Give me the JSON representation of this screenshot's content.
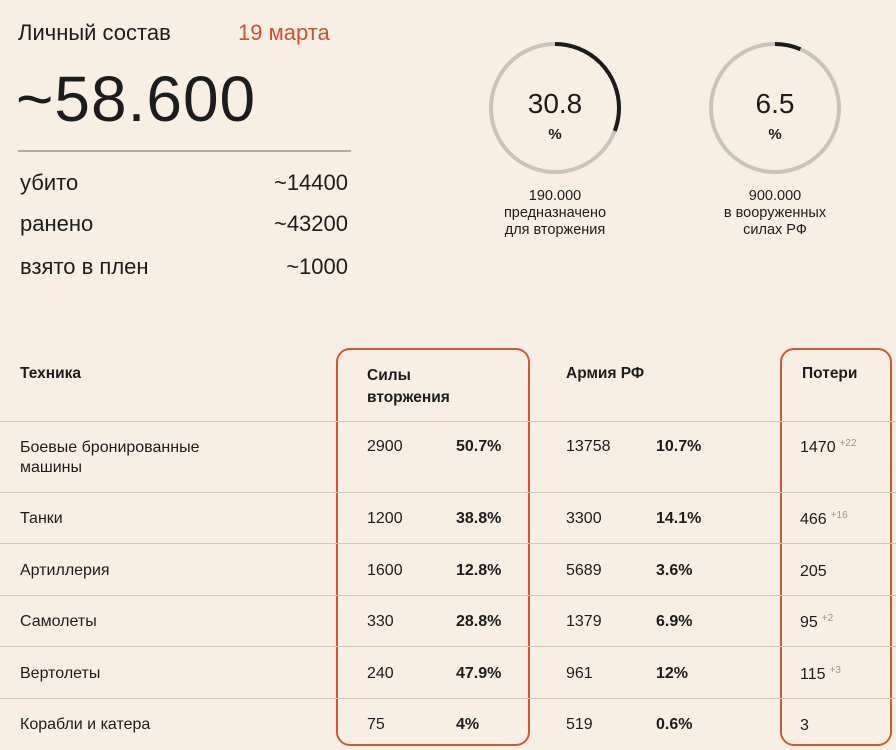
{
  "header": {
    "title": "Личный состав",
    "date": "19 марта",
    "total": "~58.600"
  },
  "casualties": [
    {
      "label": "убито",
      "value": "~14400"
    },
    {
      "label": "ранено",
      "value": "~43200"
    },
    {
      "label": "взято в плен",
      "value": "~1000"
    }
  ],
  "rings": [
    {
      "value": "30.8",
      "unit": "%",
      "fraction": 0.308,
      "caption": [
        "190.000",
        "предназначено",
        "для вторжения"
      ]
    },
    {
      "value": "6.5",
      "unit": "%",
      "fraction": 0.065,
      "caption": [
        "900.000",
        "в вооруженных",
        "силах РФ"
      ]
    }
  ],
  "colors": {
    "accent": "#c8542a",
    "highlight_border": "#cd5a32",
    "ring_track": "#c9c3b9",
    "ring_fill": "#1c1c1c",
    "background": "#f8efe4"
  },
  "table": {
    "headers": {
      "technique": "Техника",
      "invasion": [
        "Силы",
        "вторжения"
      ],
      "army": "Армия РФ",
      "losses": "Потери"
    },
    "rows": [
      {
        "name": [
          "Боевые бронированные",
          "машины"
        ],
        "inv": "2900",
        "inv_pct": "50.7%",
        "army": "13758",
        "army_pct": "10.7%",
        "loss": "1470",
        "delta": "+22"
      },
      {
        "name": [
          "Танки"
        ],
        "inv": "1200",
        "inv_pct": "38.8%",
        "army": "3300",
        "army_pct": "14.1%",
        "loss": "466",
        "delta": "+16"
      },
      {
        "name": [
          "Артиллерия"
        ],
        "inv": "1600",
        "inv_pct": "12.8%",
        "army": "5689",
        "army_pct": "3.6%",
        "loss": "205",
        "delta": ""
      },
      {
        "name": [
          "Самолеты"
        ],
        "inv": "330",
        "inv_pct": "28.8%",
        "army": "1379",
        "army_pct": "6.9%",
        "loss": "95",
        "delta": "+2"
      },
      {
        "name": [
          "Вертолеты"
        ],
        "inv": "240",
        "inv_pct": "47.9%",
        "army": "961",
        "army_pct": "12%",
        "loss": "115",
        "delta": "+3"
      },
      {
        "name": [
          "Корабли и катера"
        ],
        "inv": "75",
        "inv_pct": "4%",
        "army": "519",
        "army_pct": "0.6%",
        "loss": "3",
        "delta": ""
      }
    ]
  }
}
